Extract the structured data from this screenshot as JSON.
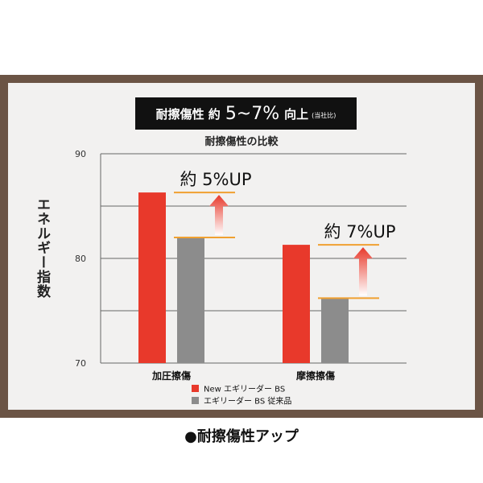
{
  "banner": {
    "lead": "耐擦傷性 約",
    "big": "5~7%",
    "tail": "向上",
    "note": "(当社比)"
  },
  "caption": "●耐擦傷性アップ",
  "colors": {
    "new": "#e8392b",
    "old": "#8c8c8c",
    "highlight": "#f0a030",
    "frame": "#6b5445"
  },
  "chart_data": {
    "type": "bar",
    "title": "耐擦傷性の比較",
    "xlabel": "",
    "ylabel": "エネルギー指数",
    "categories": [
      "加圧擦傷",
      "摩擦擦傷"
    ],
    "series": [
      {
        "name": "New エギリーダー BS",
        "values": [
          86.3,
          81.3
        ]
      },
      {
        "name": "エギリーダー BS 従来品",
        "values": [
          82.0,
          76.2
        ]
      }
    ],
    "ylim": [
      70,
      90
    ],
    "yticks": [
      70,
      80,
      90
    ],
    "grid": true,
    "legend": "bottom",
    "annotations": [
      "約 5%UP",
      "約 7%UP"
    ]
  }
}
